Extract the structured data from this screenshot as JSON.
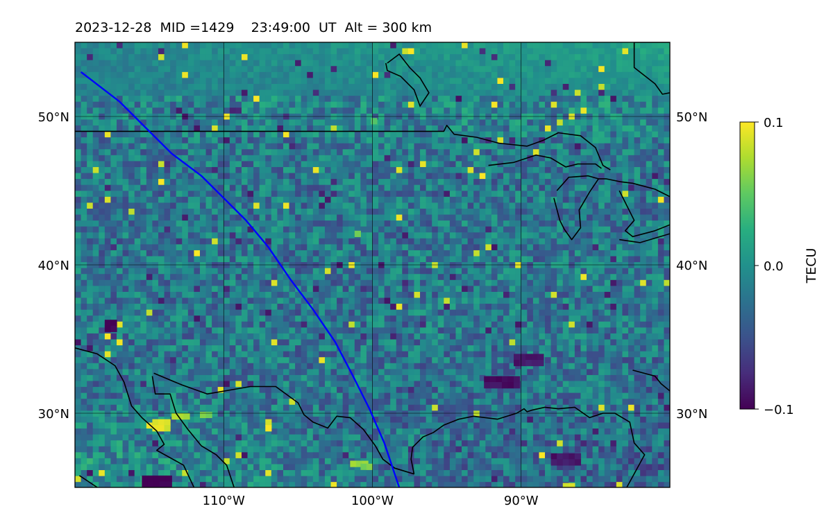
{
  "title": "2023-12-28  MID =1429    23:49:00  UT  Alt = 300 km",
  "map": {
    "lon_range": [
      -120,
      -80
    ],
    "lat_range": [
      25,
      55
    ],
    "lon_ticks": [
      {
        "value": -110,
        "label": "110°W"
      },
      {
        "value": -100,
        "label": "100°W"
      },
      {
        "value": -90,
        "label": "90°W"
      }
    ],
    "lat_ticks": [
      {
        "value": 50,
        "label": "50°N"
      },
      {
        "value": 40,
        "label": "40°N"
      },
      {
        "value": 30,
        "label": "30°N"
      }
    ],
    "gridlines": true,
    "field": "TEC perturbation",
    "track_color": "#0000ff",
    "coastline_color": "#000000",
    "satellite_track": [
      [
        -119.6,
        53.0
      ],
      [
        -117.0,
        51.0
      ],
      [
        -115.0,
        49.0
      ],
      [
        -113.5,
        47.5
      ],
      [
        -111.5,
        46.0
      ],
      [
        -110.0,
        44.5
      ],
      [
        -108.5,
        43.0
      ],
      [
        -107.0,
        41.2
      ],
      [
        -105.5,
        39.0
      ],
      [
        -104.0,
        37.0
      ],
      [
        -102.5,
        34.8
      ],
      [
        -101.3,
        32.5
      ],
      [
        -100.2,
        30.3
      ],
      [
        -99.2,
        28.0
      ],
      [
        -98.2,
        25.0
      ]
    ]
  },
  "colorbar": {
    "label": "TECU",
    "min": -0.1,
    "max": 0.1,
    "ticks": [
      {
        "value": 0.1,
        "label": "0.1"
      },
      {
        "value": 0.0,
        "label": "0.0"
      },
      {
        "value": -0.1,
        "label": "−0.1"
      }
    ],
    "colormap": "viridis"
  },
  "coastlines": [
    [
      [
        -120,
        49
      ],
      [
        -95.2,
        49
      ],
      [
        -95,
        49.4
      ],
      [
        -94.5,
        48.8
      ],
      [
        -93,
        48.6
      ],
      [
        -91.5,
        48.2
      ],
      [
        -89.6,
        48.0
      ],
      [
        -88.5,
        48.4
      ],
      [
        -87.5,
        48.9
      ],
      [
        -86,
        48.7
      ],
      [
        -85,
        47.9
      ],
      [
        -84.5,
        46.7
      ],
      [
        -84,
        46.4
      ]
    ],
    [
      [
        -92.2,
        46.7
      ],
      [
        -90.5,
        46.9
      ],
      [
        -89,
        47.4
      ],
      [
        -88,
        47.2
      ],
      [
        -87,
        46.6
      ],
      [
        -86.2,
        46.8
      ],
      [
        -85,
        46.8
      ],
      [
        -84.6,
        46.5
      ]
    ],
    [
      [
        -87.6,
        45.0
      ],
      [
        -86.8,
        45.9
      ],
      [
        -85.5,
        46.0
      ],
      [
        -84.8,
        45.8
      ],
      [
        -84.3,
        45.8
      ],
      [
        -83.3,
        45.6
      ],
      [
        -82.5,
        45.5
      ],
      [
        -81,
        45.1
      ],
      [
        -80,
        44.6
      ]
    ],
    [
      [
        -87.8,
        44.5
      ],
      [
        -87.4,
        43.0
      ],
      [
        -87.1,
        42.4
      ],
      [
        -86.6,
        41.7
      ],
      [
        -86.0,
        42.5
      ],
      [
        -86.1,
        43.7
      ],
      [
        -85.4,
        44.9
      ],
      [
        -84.8,
        45.8
      ]
    ],
    [
      [
        -83.4,
        45.0
      ],
      [
        -82.9,
        44.0
      ],
      [
        -82.4,
        43.0
      ],
      [
        -83.0,
        42.3
      ],
      [
        -82.5,
        41.9
      ],
      [
        -81.0,
        42.3
      ],
      [
        -80,
        42.7
      ]
    ],
    [
      [
        -83.4,
        41.7
      ],
      [
        -82.0,
        41.5
      ],
      [
        -80,
        42.1
      ]
    ],
    [
      [
        -80,
        55
      ],
      [
        -82.4,
        55
      ],
      [
        -82.4,
        53.3
      ],
      [
        -81.0,
        52.2
      ],
      [
        -80.5,
        51.5
      ],
      [
        -80,
        51.6
      ]
    ],
    [
      [
        -82.9,
        25
      ],
      [
        -81.7,
        27.2
      ],
      [
        -82.4,
        28.0
      ],
      [
        -82.7,
        29.4
      ],
      [
        -83.7,
        30.0
      ],
      [
        -84.5,
        30.0
      ],
      [
        -85.4,
        29.7
      ],
      [
        -86.4,
        30.4
      ],
      [
        -87.5,
        30.3
      ],
      [
        -88.4,
        30.4
      ],
      [
        -89.3,
        30.2
      ],
      [
        -89.6,
        30.1
      ],
      [
        -89.8,
        30.3
      ],
      [
        -90.3,
        30.0
      ],
      [
        -91.6,
        29.6
      ],
      [
        -92.4,
        29.7
      ],
      [
        -93.2,
        29.8
      ],
      [
        -94.2,
        29.6
      ],
      [
        -95.2,
        29.2
      ],
      [
        -95.9,
        28.7
      ],
      [
        -96.6,
        28.4
      ],
      [
        -97.3,
        27.7
      ],
      [
        -97.4,
        26.9
      ],
      [
        -97.2,
        25.9
      ]
    ],
    [
      [
        -97.2,
        25.9
      ],
      [
        -98.5,
        26.3
      ],
      [
        -99.3,
        26.9
      ],
      [
        -99.8,
        27.8
      ],
      [
        -100.6,
        28.9
      ],
      [
        -101.5,
        29.7
      ],
      [
        -102.4,
        29.8
      ],
      [
        -103.0,
        29.0
      ],
      [
        -104.0,
        29.4
      ],
      [
        -104.6,
        29.9
      ],
      [
        -105.0,
        30.7
      ],
      [
        -106.5,
        31.8
      ],
      [
        -108.2,
        31.8
      ],
      [
        -111.1,
        31.3
      ],
      [
        -112.8,
        31.9
      ],
      [
        -114.7,
        32.7
      ]
    ],
    [
      [
        -114.8,
        32.5
      ],
      [
        -114.6,
        31.3
      ],
      [
        -113.6,
        31.3
      ],
      [
        -113.2,
        30.0
      ],
      [
        -112.4,
        28.9
      ],
      [
        -111.5,
        27.8
      ],
      [
        -110.5,
        27.2
      ],
      [
        -109.8,
        26.5
      ],
      [
        -109.3,
        25
      ]
    ],
    [
      [
        -120,
        34.4
      ],
      [
        -118.5,
        34.0
      ],
      [
        -117.3,
        33.2
      ],
      [
        -116.7,
        32.1
      ],
      [
        -116.2,
        30.5
      ],
      [
        -115.5,
        29.7
      ],
      [
        -114.5,
        28.8
      ],
      [
        -114.0,
        27.9
      ],
      [
        -114.5,
        27.5
      ],
      [
        -112.7,
        26.5
      ],
      [
        -112.0,
        25
      ]
    ],
    [
      [
        -119.7,
        25.8
      ],
      [
        -118.5,
        25
      ]
    ],
    [
      [
        -82.5,
        32.9
      ],
      [
        -81.0,
        32.5
      ],
      [
        -80.6,
        32.0
      ],
      [
        -80,
        31.5
      ]
    ]
  ],
  "islands": [
    [
      [
        -99,
        53.6
      ],
      [
        -98.2,
        54.2
      ],
      [
        -97.5,
        53.3
      ],
      [
        -96.8,
        52.6
      ],
      [
        -96.2,
        51.6
      ],
      [
        -96.8,
        50.7
      ],
      [
        -97.2,
        51.8
      ],
      [
        -98.1,
        52.7
      ],
      [
        -99.0,
        53.1
      ],
      [
        -99.1,
        53.6
      ]
    ]
  ]
}
